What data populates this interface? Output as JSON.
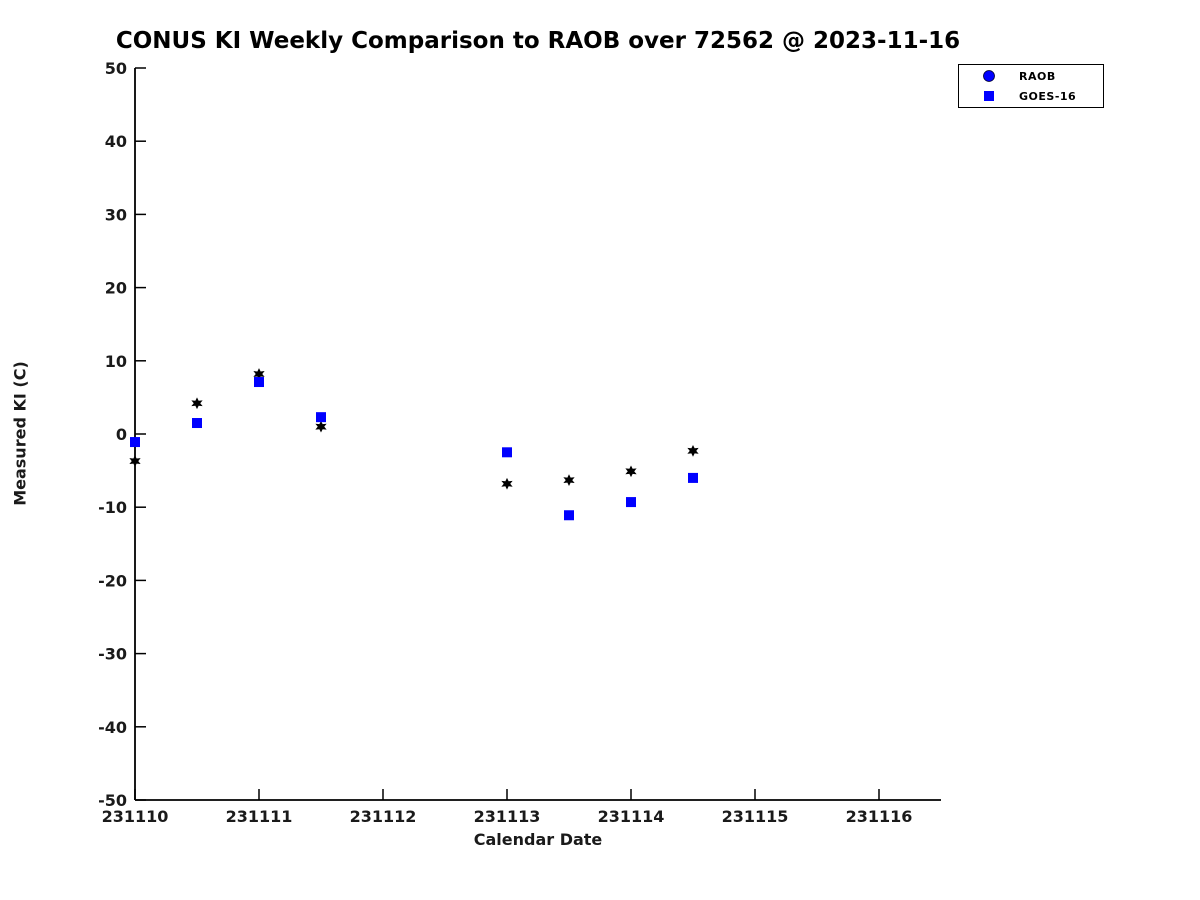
{
  "title": "CONUS KI Weekly Comparison to RAOB over 72562 @ 2023-11-16",
  "colors": {
    "raob_marker": "#000000",
    "goes_marker": "#0000ff",
    "axis": "#000000",
    "text": "#1a1a1a",
    "background": "#ffffff"
  },
  "legend": {
    "items": [
      {
        "label": "RAOB",
        "marker": "circle-icon",
        "color": "#0000ff"
      },
      {
        "label": "GOES-16",
        "marker": "square-icon",
        "color": "#0000ff"
      }
    ]
  },
  "chart_data": {
    "type": "scatter",
    "title": "CONUS KI Weekly Comparison to RAOB over 72562 @ 2023-11-16",
    "xlabel": "Calendar Date",
    "ylabel": "Measured KI (C)",
    "xlim": [
      231110,
      231116.5
    ],
    "ylim": [
      -50,
      50
    ],
    "xticks": [
      231110,
      231111,
      231112,
      231113,
      231114,
      231115,
      231116
    ],
    "yticks": [
      -50,
      -40,
      -30,
      -20,
      -10,
      0,
      10,
      20,
      30,
      40,
      50
    ],
    "grid": false,
    "legend_position": "top-right",
    "series": [
      {
        "name": "RAOB",
        "marker": "hexagram",
        "color": "#000000",
        "points": [
          {
            "x": 231110.0,
            "y": -3.7
          },
          {
            "x": 231110.5,
            "y": 4.2
          },
          {
            "x": 231111.0,
            "y": 8.2
          },
          {
            "x": 231111.5,
            "y": 1.0
          },
          {
            "x": 231113.0,
            "y": -6.8
          },
          {
            "x": 231113.5,
            "y": -6.3
          },
          {
            "x": 231114.0,
            "y": -5.1
          },
          {
            "x": 231114.5,
            "y": -2.3
          }
        ]
      },
      {
        "name": "GOES-16",
        "marker": "square",
        "color": "#0000ff",
        "points": [
          {
            "x": 231110.0,
            "y": -1.1
          },
          {
            "x": 231110.5,
            "y": 1.5
          },
          {
            "x": 231111.0,
            "y": 7.1
          },
          {
            "x": 231111.5,
            "y": 2.3
          },
          {
            "x": 231113.0,
            "y": -2.5
          },
          {
            "x": 231113.5,
            "y": -11.1
          },
          {
            "x": 231114.0,
            "y": -9.3
          },
          {
            "x": 231114.5,
            "y": -6.0
          }
        ]
      }
    ]
  }
}
